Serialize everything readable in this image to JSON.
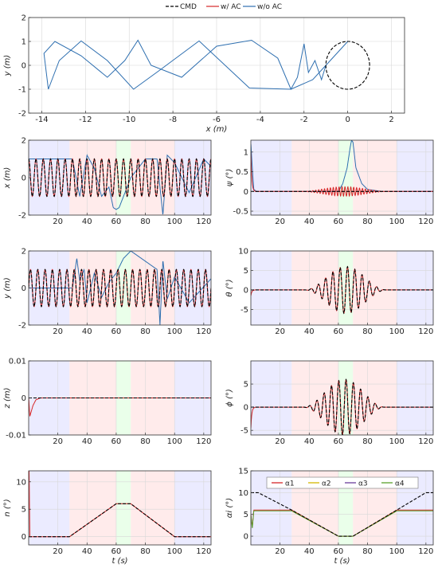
{
  "legend_top": [
    {
      "label": "CMD",
      "color": "#000000",
      "dash": "4,2"
    },
    {
      "label": "w/ AC",
      "color": "#d62728",
      "dash": ""
    },
    {
      "label": "w/o AC",
      "color": "#2e6fb0",
      "dash": ""
    }
  ],
  "colors": {
    "cmd": "#000000",
    "with_ac": "#d62728",
    "without_ac": "#2e6fb0",
    "phase_blue": "#e8e8ff",
    "phase_red": "#ffe8e8",
    "phase_green": "#e6ffe6"
  },
  "chart_data": [
    {
      "id": "xy",
      "type": "line",
      "xlabel": "x (m)",
      "ylabel": "y (m)",
      "xlim": [
        -14.6,
        2.6
      ],
      "ylim": [
        -2,
        2
      ],
      "xticks": [
        -14,
        -12,
        -10,
        -8,
        -6,
        -4,
        -2,
        0,
        2
      ],
      "xtick_labels": [
        "-14",
        "-12",
        "-10",
        "-8",
        "-6",
        "-4",
        "-2",
        "0",
        "2"
      ],
      "yticks": [
        -2,
        -1,
        0,
        1,
        2
      ],
      "ytick_labels": [
        "-2",
        "-1",
        "0",
        "1",
        "2"
      ],
      "grid": true,
      "series": [
        {
          "name": "w/o AC",
          "x": [
            0,
            -0.8,
            -1.6,
            -2.6,
            -4.5,
            -6.8,
            -8.6,
            -9.8,
            -11,
            -12.2,
            -13.2,
            -13.7,
            -13.9,
            -13.4,
            -12.2,
            -11,
            -10.2,
            -9.6,
            -9,
            -7.6,
            -6,
            -4.4,
            -3.2,
            -2.6,
            -2.3,
            -2,
            -1.8,
            -1.5,
            -1.2,
            -1
          ],
          "y": [
            1,
            0.2,
            -0.6,
            -1,
            -0.95,
            1.02,
            -0.2,
            -1,
            0.2,
            1.02,
            0.2,
            -1,
            0.5,
            1,
            0.4,
            -0.5,
            0.2,
            1.05,
            0,
            -0.5,
            0.8,
            1.05,
            0.3,
            -1,
            -0.5,
            0.9,
            -0.3,
            0.2,
            -0.6,
            0
          ]
        },
        {
          "name": "CMD",
          "shape": "circle",
          "center": [
            0,
            0
          ],
          "radius": 1
        }
      ]
    },
    {
      "id": "x_t",
      "type": "line",
      "xlabel": "",
      "ylabel": "x (m)",
      "xlim": [
        0,
        125
      ],
      "ylim": [
        -2,
        2
      ],
      "xticks": [
        20,
        40,
        60,
        80,
        100,
        120
      ],
      "xtick_labels": [
        "20",
        "40",
        "60",
        "80",
        "100",
        "120"
      ],
      "yticks": [
        -2,
        0,
        2
      ],
      "ytick_labels": [
        "-2",
        "0",
        "2"
      ],
      "grid": true,
      "phases": [
        {
          "from": 0,
          "to": 28,
          "color": "blue"
        },
        {
          "from": 28,
          "to": 60,
          "color": "red"
        },
        {
          "from": 60,
          "to": 70,
          "color": "green"
        },
        {
          "from": 70,
          "to": 100,
          "color": "red"
        },
        {
          "from": 100,
          "to": 125,
          "color": "blue"
        }
      ],
      "series": [
        {
          "name": "CMD",
          "signal": "cos",
          "amplitude": 1,
          "period": 5
        },
        {
          "name": "w/ AC",
          "signal": "cos",
          "amplitude": 1,
          "period": 5
        },
        {
          "name": "w/o AC",
          "t": [
            0,
            30,
            35,
            40,
            45,
            50,
            55,
            58,
            60,
            62,
            70,
            80,
            88,
            92,
            95,
            100,
            110,
            120,
            125
          ],
          "v": [
            1,
            1,
            -1,
            1.2,
            0.5,
            -1,
            -0.5,
            -1.6,
            -1.7,
            -1.6,
            0,
            1,
            1,
            -2,
            1.2,
            0.8,
            -0.8,
            1,
            0.6
          ]
        }
      ]
    },
    {
      "id": "psi_t",
      "type": "line",
      "xlabel": "",
      "ylabel": "ψ (°)",
      "xlim": [
        0,
        125
      ],
      "ylim": [
        -0.6,
        1.3
      ],
      "xticks": [
        20,
        40,
        60,
        80,
        100,
        120
      ],
      "xtick_labels": [
        "20",
        "40",
        "60",
        "80",
        "100",
        "120"
      ],
      "yticks": [
        -0.5,
        0,
        0.5,
        1
      ],
      "ytick_labels": [
        "-0.5",
        "0",
        "0.5",
        "1"
      ],
      "grid": true,
      "phases": [
        {
          "from": 0,
          "to": 28,
          "color": "blue"
        },
        {
          "from": 28,
          "to": 60,
          "color": "red"
        },
        {
          "from": 60,
          "to": 70,
          "color": "green"
        },
        {
          "from": 70,
          "to": 100,
          "color": "red"
        },
        {
          "from": 100,
          "to": 125,
          "color": "blue"
        }
      ],
      "series": [
        {
          "name": "CMD",
          "signal": "zero"
        },
        {
          "name": "w/ AC",
          "signal": "envelope_oscillation",
          "amplitude": 0.12,
          "center": 64,
          "width": 30,
          "period": 2,
          "start_spike": 1.0
        },
        {
          "name": "w/o AC",
          "t": [
            0,
            1,
            2,
            4,
            60,
            63,
            66,
            68,
            69,
            70,
            72,
            76,
            80,
            90,
            125
          ],
          "v": [
            1.2,
            0.6,
            0.05,
            0,
            0,
            0.2,
            0.6,
            1.1,
            1.3,
            1.25,
            0.6,
            0.2,
            0.05,
            0,
            0
          ]
        }
      ]
    },
    {
      "id": "y_t",
      "type": "line",
      "xlabel": "",
      "ylabel": "y (m)",
      "xlim": [
        0,
        125
      ],
      "ylim": [
        -2,
        2
      ],
      "xticks": [
        20,
        40,
        60,
        80,
        100,
        120
      ],
      "xtick_labels": [
        "20",
        "40",
        "60",
        "80",
        "100",
        "120"
      ],
      "yticks": [
        -2,
        0,
        2
      ],
      "ytick_labels": [
        "-2",
        "0",
        "2"
      ],
      "grid": true,
      "phases": [
        {
          "from": 0,
          "to": 28,
          "color": "blue"
        },
        {
          "from": 28,
          "to": 60,
          "color": "red"
        },
        {
          "from": 60,
          "to": 70,
          "color": "green"
        },
        {
          "from": 70,
          "to": 100,
          "color": "red"
        },
        {
          "from": 100,
          "to": 125,
          "color": "blue"
        }
      ],
      "series": [
        {
          "name": "CMD",
          "signal": "sin",
          "amplitude": 1,
          "period": 5
        },
        {
          "name": "w/ AC",
          "signal": "sin",
          "amplitude": 1,
          "period": 5
        },
        {
          "name": "w/o AC",
          "t": [
            0,
            30,
            33,
            35,
            38,
            40,
            45,
            50,
            55,
            60,
            65,
            70,
            88,
            90,
            92,
            95,
            100,
            110,
            125
          ],
          "v": [
            0,
            0,
            1.6,
            0.4,
            1,
            -0.8,
            0.8,
            -0.5,
            0.3,
            0.8,
            1.6,
            2,
            1,
            -2,
            1.5,
            -0.6,
            0.6,
            -0.8,
            0.5
          ]
        }
      ]
    },
    {
      "id": "theta_t",
      "type": "line",
      "xlabel": "",
      "ylabel": "θ (°)",
      "xlim": [
        0,
        125
      ],
      "ylim": [
        -9,
        10
      ],
      "xticks": [
        20,
        40,
        60,
        80,
        100,
        120
      ],
      "xtick_labels": [
        "20",
        "40",
        "60",
        "80",
        "100",
        "120"
      ],
      "yticks": [
        -5,
        0,
        5,
        10
      ],
      "ytick_labels": [
        "-5",
        "0",
        "5",
        "10"
      ],
      "grid": true,
      "phases": [
        {
          "from": 0,
          "to": 28,
          "color": "blue"
        },
        {
          "from": 28,
          "to": 60,
          "color": "red"
        },
        {
          "from": 60,
          "to": 70,
          "color": "green"
        },
        {
          "from": 70,
          "to": 100,
          "color": "red"
        },
        {
          "from": 100,
          "to": 125,
          "color": "blue"
        }
      ],
      "series": [
        {
          "name": "CMD",
          "signal": "envelope_oscillation",
          "amplitude": 6,
          "center": 65,
          "width": 28,
          "period": 5
        },
        {
          "name": "w/ AC",
          "signal": "envelope_oscillation",
          "amplitude": 6,
          "center": 65,
          "width": 28,
          "period": 5,
          "start_spike": -1.5
        }
      ]
    },
    {
      "id": "z_t",
      "type": "line",
      "xlabel": "",
      "ylabel": "z (m)",
      "xlim": [
        0,
        125
      ],
      "ylim": [
        -0.01,
        0.01
      ],
      "xticks": [
        20,
        40,
        60,
        80,
        100,
        120
      ],
      "xtick_labels": [
        "20",
        "40",
        "60",
        "80",
        "100",
        "120"
      ],
      "yticks": [
        -0.01,
        0,
        0.01
      ],
      "ytick_labels": [
        "-0.01",
        "0",
        "0.01"
      ],
      "grid": true,
      "phases": [
        {
          "from": 0,
          "to": 28,
          "color": "blue"
        },
        {
          "from": 28,
          "to": 60,
          "color": "red"
        },
        {
          "from": 60,
          "to": 70,
          "color": "green"
        },
        {
          "from": 70,
          "to": 100,
          "color": "red"
        },
        {
          "from": 100,
          "to": 125,
          "color": "blue"
        }
      ],
      "series": [
        {
          "name": "CMD",
          "signal": "zero"
        },
        {
          "name": "w/ AC",
          "t": [
            0,
            0.8,
            1.5,
            3,
            5,
            8,
            125
          ],
          "v": [
            0,
            -0.005,
            -0.004,
            -0.002,
            -0.0005,
            0,
            0
          ]
        }
      ]
    },
    {
      "id": "phi_t",
      "type": "line",
      "xlabel": "",
      "ylabel": "ϕ (°)",
      "xlim": [
        0,
        125
      ],
      "ylim": [
        -6,
        10
      ],
      "xticks": [
        20,
        40,
        60,
        80,
        100,
        120
      ],
      "xtick_labels": [
        "20",
        "40",
        "60",
        "80",
        "100",
        "120"
      ],
      "yticks": [
        -5,
        0,
        5
      ],
      "ytick_labels": [
        "-5",
        "0",
        "5"
      ],
      "grid": true,
      "phases": [
        {
          "from": 0,
          "to": 28,
          "color": "blue"
        },
        {
          "from": 28,
          "to": 60,
          "color": "red"
        },
        {
          "from": 60,
          "to": 70,
          "color": "green"
        },
        {
          "from": 70,
          "to": 100,
          "color": "red"
        },
        {
          "from": 100,
          "to": 125,
          "color": "blue"
        }
      ],
      "series": [
        {
          "name": "CMD",
          "signal": "envelope_oscillation",
          "amplitude": 6,
          "center": 64,
          "width": 28,
          "period": 5,
          "phase_shift": 1.25
        },
        {
          "name": "w/ AC",
          "signal": "envelope_oscillation",
          "amplitude": 6,
          "center": 64,
          "width": 28,
          "period": 5,
          "phase_shift": 1.25,
          "start_spike": -4.5
        }
      ]
    },
    {
      "id": "n_t",
      "type": "line",
      "xlabel": "t (s)",
      "ylabel": "n (°)",
      "xlim": [
        0,
        125
      ],
      "ylim": [
        -1.5,
        12
      ],
      "xticks": [
        20,
        40,
        60,
        80,
        100,
        120
      ],
      "xtick_labels": [
        "20",
        "40",
        "60",
        "80",
        "100",
        "120"
      ],
      "yticks": [
        0,
        5,
        10
      ],
      "ytick_labels": [
        "0",
        "5",
        "10"
      ],
      "grid": true,
      "phases": [
        {
          "from": 0,
          "to": 28,
          "color": "blue"
        },
        {
          "from": 28,
          "to": 60,
          "color": "red"
        },
        {
          "from": 60,
          "to": 70,
          "color": "green"
        },
        {
          "from": 70,
          "to": 100,
          "color": "red"
        },
        {
          "from": 100,
          "to": 125,
          "color": "blue"
        }
      ],
      "series": [
        {
          "name": "CMD",
          "t": [
            0,
            28,
            60,
            70,
            100,
            125
          ],
          "v": [
            0,
            0,
            6,
            6,
            0,
            0
          ]
        },
        {
          "name": "w/ AC",
          "t": [
            0,
            0.3,
            0.8,
            28,
            60,
            70,
            100,
            125
          ],
          "v": [
            12,
            12,
            0,
            0,
            6,
            6,
            0,
            0
          ]
        }
      ]
    },
    {
      "id": "alpha_t",
      "type": "line",
      "xlabel": "t (s)",
      "ylabel": "αi (°)",
      "xlim": [
        0,
        125
      ],
      "ylim": [
        -2,
        15
      ],
      "xticks": [
        20,
        40,
        60,
        80,
        100,
        120
      ],
      "xtick_labels": [
        "20",
        "40",
        "60",
        "80",
        "100",
        "120"
      ],
      "yticks": [
        0,
        5,
        10,
        15
      ],
      "ytick_labels": [
        "0",
        "5",
        "10",
        "15"
      ],
      "grid": true,
      "phases": [
        {
          "from": 0,
          "to": 28,
          "color": "blue"
        },
        {
          "from": 28,
          "to": 60,
          "color": "red"
        },
        {
          "from": 60,
          "to": 70,
          "color": "green"
        },
        {
          "from": 70,
          "to": 100,
          "color": "red"
        },
        {
          "from": 100,
          "to": 125,
          "color": "blue"
        }
      ],
      "legend": [
        {
          "label": "α1",
          "color": "#d62728"
        },
        {
          "label": "α2",
          "color": "#d4b800"
        },
        {
          "label": "α3",
          "color": "#6a3d9a"
        },
        {
          "label": "α4",
          "color": "#5aa02c"
        }
      ],
      "series": [
        {
          "name": "CMD",
          "t": [
            0,
            5,
            28,
            60,
            70,
            100,
            120,
            125
          ],
          "v": [
            10,
            10,
            6,
            0,
            0,
            6,
            10,
            10
          ]
        },
        {
          "name": "α1",
          "t": [
            0,
            1,
            2,
            3,
            28,
            60,
            70,
            100,
            125
          ],
          "v": [
            5,
            2,
            6,
            6,
            6,
            0,
            0,
            6,
            6
          ]
        },
        {
          "name": "α4",
          "t": [
            0,
            1,
            2,
            3,
            28,
            60,
            70,
            100,
            125
          ],
          "v": [
            4.8,
            1.8,
            5.8,
            5.8,
            5.8,
            0,
            0,
            5.8,
            5.8
          ]
        }
      ]
    }
  ]
}
